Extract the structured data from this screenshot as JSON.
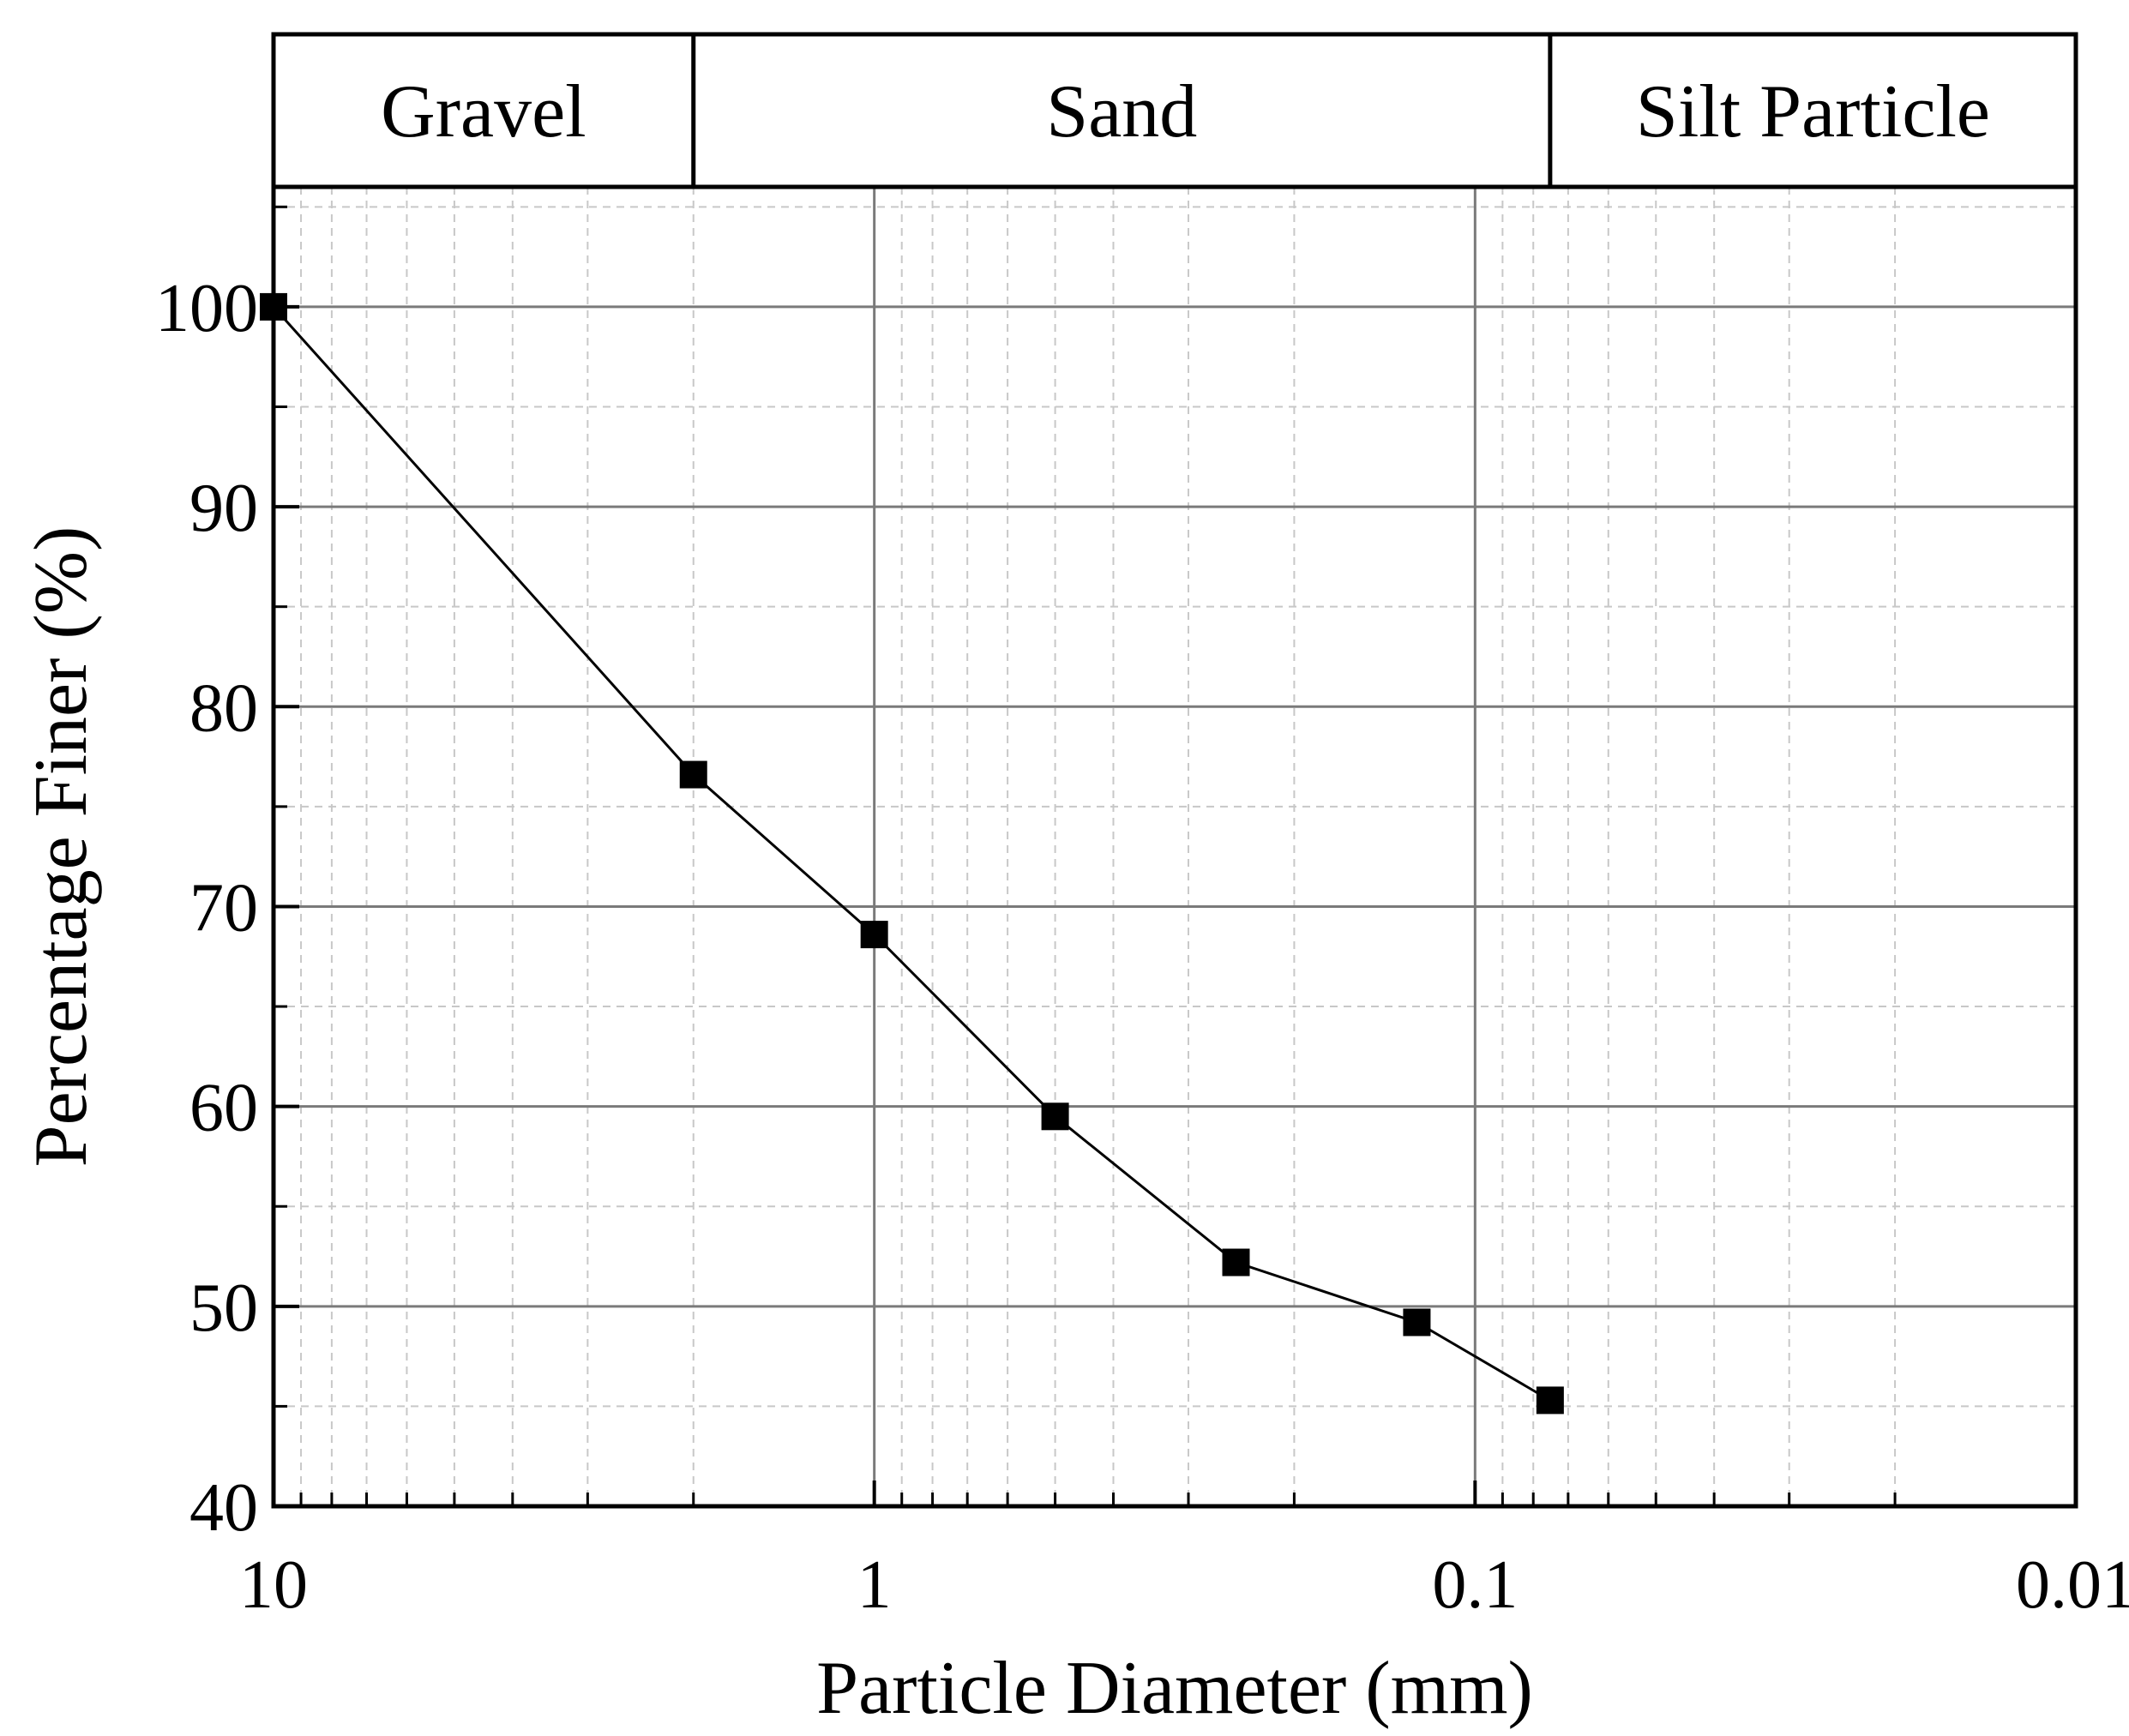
{
  "chart_data": {
    "type": "line",
    "xlabel": "Particle Diameter (mm)",
    "ylabel": "Percentage Finer (%)",
    "x_scale": "log",
    "x_reversed": true,
    "xlim": [
      10,
      0.01
    ],
    "ylim": [
      40,
      106
    ],
    "xticks": [
      10,
      1,
      0.1,
      0.01
    ],
    "xtick_labels": [
      "10",
      "1",
      "0.1",
      "0.01"
    ],
    "yticks": [
      40,
      50,
      60,
      70,
      80,
      90,
      100
    ],
    "ytick_labels": [
      "40",
      "50",
      "60",
      "70",
      "80",
      "90",
      "100"
    ],
    "grid": true,
    "zones": [
      {
        "label": "Gravel",
        "from": 10,
        "to": 2
      },
      {
        "label": "Sand",
        "from": 2,
        "to": 0.075
      },
      {
        "label": "Silt Particle",
        "from": 0.075,
        "to": 0.01
      }
    ],
    "series": [
      {
        "marker": "square",
        "color": "#000000",
        "x": [
          10,
          2,
          1,
          0.5,
          0.25,
          0.125,
          0.075
        ],
        "y": [
          100.0,
          76.6,
          68.6,
          59.5,
          52.2,
          49.2,
          45.3
        ]
      }
    ]
  }
}
